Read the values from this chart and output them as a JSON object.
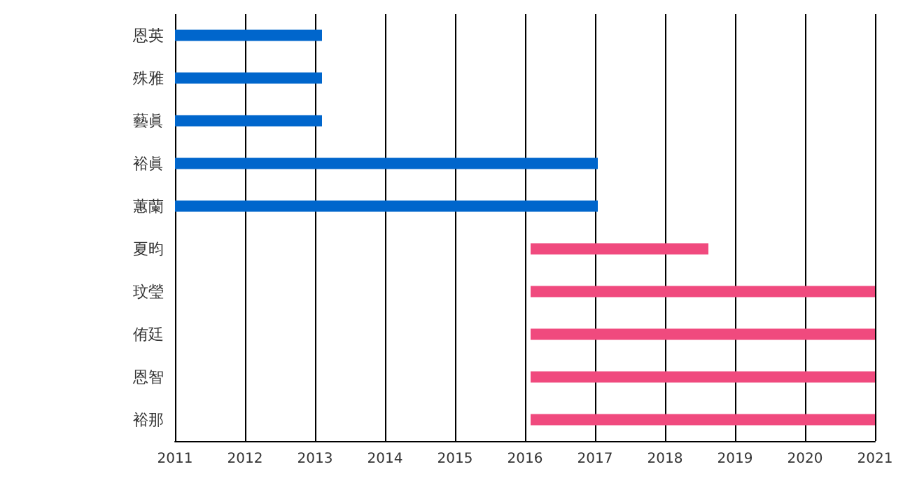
{
  "chart_data": {
    "type": "bar",
    "orientation": "horizontal",
    "categories": [
      "恩英",
      "殊雅",
      "藝眞",
      "裕眞",
      "蕙蘭",
      "夏昀",
      "玟瑩",
      "侑廷",
      "恩智",
      "裕那"
    ],
    "base": [
      2011,
      2011,
      2011,
      2011,
      2011,
      2016.08,
      2016.08,
      2016.08,
      2016.08,
      2016.08
    ],
    "values": [
      2.1,
      2.1,
      2.1,
      6.04,
      6.04,
      2.54,
      4.92,
      4.92,
      4.92,
      4.92
    ],
    "colors": [
      "#0066cc",
      "#0066cc",
      "#0066cc",
      "#0066cc",
      "#0066cc",
      "#f04a7e",
      "#f04a7e",
      "#f04a7e",
      "#f04a7e",
      "#f04a7e"
    ],
    "xlim": [
      2011,
      2021
    ],
    "xticks": [
      2011,
      2012,
      2013,
      2014,
      2015,
      2016,
      2017,
      2018,
      2019,
      2020,
      2021
    ],
    "grid": "x"
  }
}
